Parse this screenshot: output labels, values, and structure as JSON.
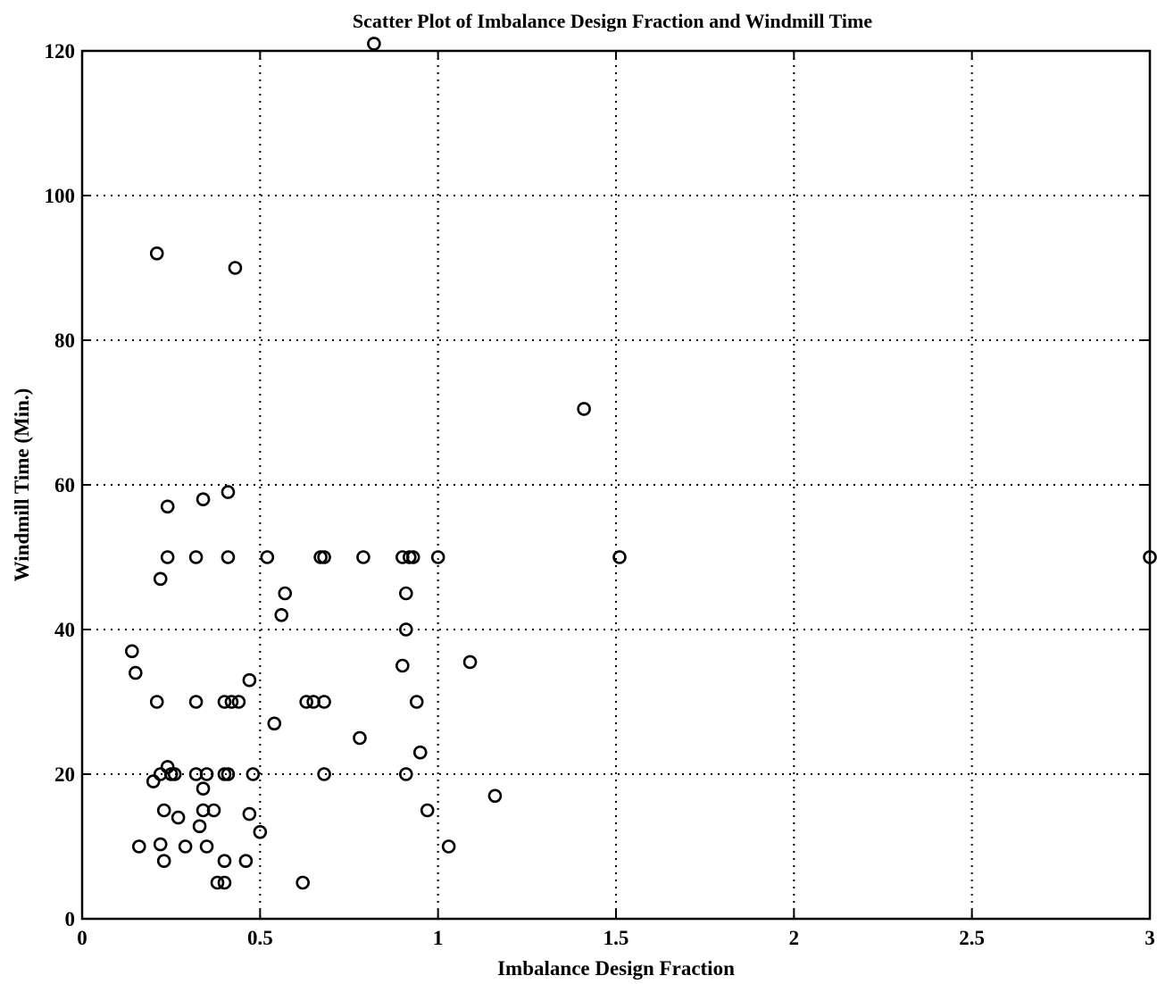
{
  "chart_data": {
    "type": "scatter",
    "title": "Scatter Plot of Imbalance Design Fraction and Windmill Time",
    "xlabel": "Imbalance Design Fraction",
    "ylabel": "Windmill Time (Min.)",
    "xlim": [
      0,
      3
    ],
    "ylim": [
      0,
      120
    ],
    "xticks": [
      0,
      0.5,
      1,
      1.5,
      2,
      2.5,
      3
    ],
    "xtick_labels": [
      "0",
      "0.5",
      "1",
      "1.5",
      "2",
      "2.5",
      "3"
    ],
    "yticks": [
      0,
      20,
      40,
      60,
      80,
      100,
      120
    ],
    "ytick_labels": [
      "0",
      "20",
      "40",
      "60",
      "80",
      "100",
      "120"
    ],
    "grid": true,
    "marker": "open-circle",
    "points": [
      [
        0.82,
        121
      ],
      [
        0.21,
        92
      ],
      [
        0.43,
        90
      ],
      [
        1.41,
        70.5
      ],
      [
        0.41,
        59
      ],
      [
        0.34,
        58
      ],
      [
        0.24,
        57
      ],
      [
        0.24,
        50
      ],
      [
        0.32,
        50
      ],
      [
        0.41,
        50
      ],
      [
        0.52,
        50
      ],
      [
        0.67,
        50
      ],
      [
        0.68,
        50
      ],
      [
        0.79,
        50
      ],
      [
        0.9,
        50
      ],
      [
        0.92,
        50
      ],
      [
        0.93,
        50
      ],
      [
        1.0,
        50
      ],
      [
        1.51,
        50
      ],
      [
        3.0,
        50
      ],
      [
        0.22,
        47
      ],
      [
        0.57,
        45
      ],
      [
        0.91,
        45
      ],
      [
        0.56,
        42
      ],
      [
        0.91,
        40
      ],
      [
        0.14,
        37
      ],
      [
        0.15,
        34
      ],
      [
        0.9,
        35
      ],
      [
        1.09,
        35.5
      ],
      [
        0.47,
        33
      ],
      [
        0.21,
        30
      ],
      [
        0.32,
        30
      ],
      [
        0.4,
        30
      ],
      [
        0.42,
        30
      ],
      [
        0.44,
        30
      ],
      [
        0.63,
        30
      ],
      [
        0.65,
        30
      ],
      [
        0.68,
        30
      ],
      [
        0.94,
        30
      ],
      [
        0.54,
        27
      ],
      [
        0.78,
        25
      ],
      [
        0.95,
        23
      ],
      [
        0.24,
        21
      ],
      [
        0.22,
        20
      ],
      [
        0.25,
        20
      ],
      [
        0.26,
        20
      ],
      [
        0.32,
        20
      ],
      [
        0.35,
        20
      ],
      [
        0.4,
        20
      ],
      [
        0.41,
        20
      ],
      [
        0.48,
        20
      ],
      [
        0.68,
        20
      ],
      [
        0.91,
        20
      ],
      [
        0.2,
        19
      ],
      [
        0.34,
        18
      ],
      [
        1.16,
        17
      ],
      [
        0.23,
        15
      ],
      [
        0.34,
        15
      ],
      [
        0.37,
        15
      ],
      [
        0.47,
        14.5
      ],
      [
        0.97,
        15
      ],
      [
        0.27,
        14
      ],
      [
        0.33,
        12.8
      ],
      [
        0.5,
        12
      ],
      [
        0.16,
        10
      ],
      [
        0.22,
        10.3
      ],
      [
        0.29,
        10
      ],
      [
        0.35,
        10
      ],
      [
        1.03,
        10
      ],
      [
        0.23,
        8
      ],
      [
        0.4,
        8
      ],
      [
        0.46,
        8
      ],
      [
        0.38,
        5
      ],
      [
        0.4,
        5
      ],
      [
        0.62,
        5
      ]
    ]
  }
}
